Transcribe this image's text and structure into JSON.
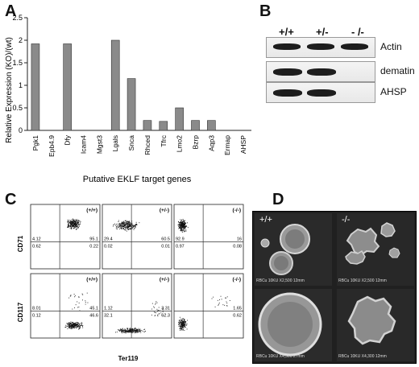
{
  "panels": {
    "a": "A",
    "b": "B",
    "c": "C",
    "d": "D"
  },
  "chart_data": {
    "type": "bar",
    "categories": [
      "Pgk1",
      "Epb4.9",
      "Dfy",
      "Icam4",
      "Mgst3",
      "Lgals",
      "Snca",
      "Rhced",
      "Tfrc",
      "Lmo2",
      "Bzrp",
      "Aqp3",
      "Ermap",
      "AHSP"
    ],
    "values": [
      1.92,
      0,
      1.92,
      0,
      0,
      2.0,
      1.15,
      0.22,
      0.2,
      0.5,
      0.22,
      0.22,
      0,
      0
    ],
    "xlabel": "Putative EKLF target genes",
    "ylabel": "Relative Expression (KO)/(wt)",
    "ylim": [
      0,
      2.5
    ],
    "yticks": [
      "0",
      "0.5",
      "1",
      "1.5",
      "2",
      "2.5"
    ],
    "color": "#8a8a8a"
  },
  "western": {
    "genotypes": [
      "+/+",
      "+/-",
      "- /-"
    ],
    "rows": [
      {
        "label": "Actin",
        "bands": [
          1,
          1,
          1
        ]
      },
      {
        "label": "dematin",
        "bands": [
          1,
          1,
          0
        ]
      },
      {
        "label": "AHSP",
        "bands": [
          1,
          1,
          0
        ]
      }
    ]
  },
  "flow": {
    "xlabel": "Ter119",
    "rows": [
      {
        "ylabel": "CD71",
        "plots": [
          {
            "genotype": "(+/+)",
            "q": [
              "4.12",
              "95.1",
              "0.62",
              "0.22"
            ]
          },
          {
            "genotype": "(+/-)",
            "q": [
              "29.4",
              "60.5",
              "0.02",
              "0.01"
            ]
          },
          {
            "genotype": "(-/-)",
            "q": [
              "92.9",
              "16",
              "0.97",
              "0.08"
            ]
          }
        ]
      },
      {
        "ylabel": "CD117",
        "plots": [
          {
            "genotype": "(+/+)",
            "q": [
              "8.01",
              "45.1",
              "0.12",
              "46.6"
            ]
          },
          {
            "genotype": "(+/-)",
            "q": [
              "1.12",
              "3.31",
              "32.1",
              "62.3"
            ]
          },
          {
            "genotype": "(-/-)",
            "q": [
              "",
              "1.65",
              "",
              "0.62"
            ]
          }
        ]
      }
    ]
  },
  "sem": {
    "labels": [
      "+/+",
      "-/-"
    ],
    "captions": [
      "RBCu  10KU  X2,500  12mm",
      "RBCu  10KU  X2,500  12mm",
      "RBCu  10KU  X4,300  27mm",
      "RBCu  10KU  X4,300  12mm"
    ]
  }
}
